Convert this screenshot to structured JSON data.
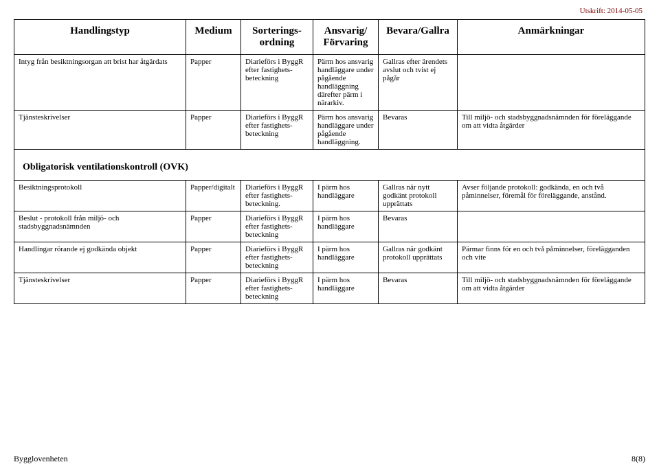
{
  "print_date": "Utskrift: 2014-05-05",
  "headers": {
    "col1": "Handlingstyp",
    "col2": "Medium",
    "col3": "Sorterings-\nordning",
    "col4": "Ansvarig/\nFörvaring",
    "col5": "Bevara/Gallra",
    "col6": "Anmärkningar"
  },
  "rows_top": [
    {
      "c1": "Intyg från besiktningsorgan att brist har åtgärdats",
      "c2": "Papper",
      "c3": "Diarieförs i ByggR efter fastighets-beteckning",
      "c4": "Pärm hos ansvarig handläggare under pågående handläggning därefter pärm i närarkiv.",
      "c5": "Gallras efter ärendets avslut och tvist ej pågår",
      "c6": ""
    },
    {
      "c1": "Tjänsteskrivelser",
      "c2": "Papper",
      "c3": "Diarieförs i ByggR efter fastighets-beteckning",
      "c4": "Pärm hos ansvarig handläggare under pågående handläggning.",
      "c5": "Bevaras",
      "c6": "Till miljö- och stadsbyggnadsnämnden för föreläggande om att vidta åtgärder"
    }
  ],
  "section_title": "Obligatorisk ventilationskontroll (OVK)",
  "rows_bottom": [
    {
      "c1": "Besiktningsprotokoll",
      "c2": "Papper/digitalt",
      "c3": "Diarieförs i ByggR efter fastighets-beteckning.",
      "c4": "I pärm hos handläggare",
      "c5": "Gallras när nytt godkänt protokoll upprättats",
      "c6": "Avser följande protokoll: godkända, en och två påminnelser, föremål för föreläggande, anstånd."
    },
    {
      "c1": "Beslut - protokoll från miljö- och stadsbyggnadsnämnden",
      "c2": "Papper",
      "c3": "Diarieförs i ByggR efter fastighets-beteckning",
      "c4": "I pärm hos handläggare",
      "c5": "Bevaras",
      "c6": ""
    },
    {
      "c1": "Handlingar rörande ej godkända objekt",
      "c2": "Papper",
      "c3": "Diarieförs i ByggR efter fastighets-beteckning",
      "c4": "I pärm hos handläggare",
      "c5": "Gallras när godkänt protokoll upprättats",
      "c6": "Pärmar finns för en och två påminnelser, förelägganden och vite"
    },
    {
      "c1": "Tjänsteskrivelser",
      "c2": "Papper",
      "c3": "Diarieförs i ByggR efter fastighets-beteckning",
      "c4": "I pärm hos handläggare",
      "c5": "Bevaras",
      "c6": "Till miljö- och stadsbyggnadsnämnden för föreläggande om att vidta åtgärder"
    }
  ],
  "footer_left": "Bygglovenheten",
  "footer_right": "8(8)"
}
